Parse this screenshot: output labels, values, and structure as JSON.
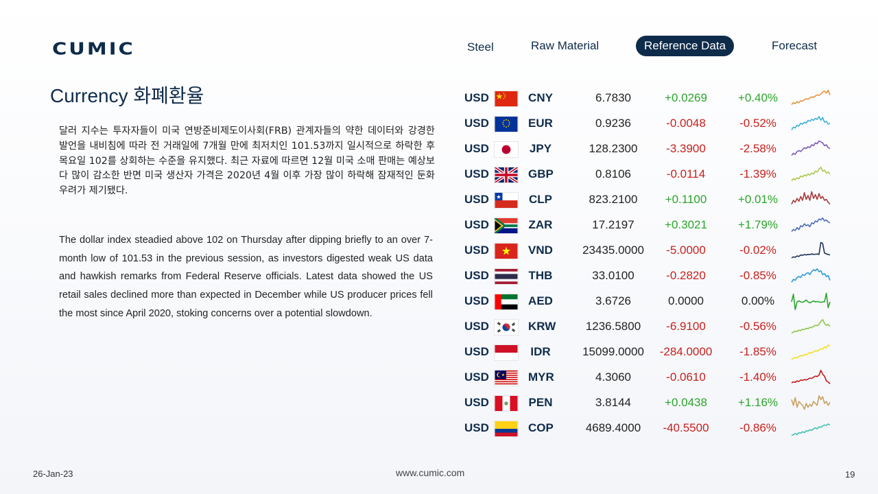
{
  "brand": {
    "name": "CUMIC"
  },
  "nav": [
    {
      "label": "Steel",
      "active": false
    },
    {
      "label": "Raw Material",
      "active": false
    },
    {
      "label": "Reference Data",
      "active": true
    },
    {
      "label": "Forecast",
      "active": false
    }
  ],
  "title": "Currency 화폐환율",
  "text_kr": "달러 지수는 투자자들이 미국 연방준비제도이사회(FRB) 관계자들의 약한 데이터와 강경한 발언을 내비침에 따라 전 거래일에 7개월 만에 최저치인 101.53까지 일시적으로 하락한 후 목요일 102를 상회하는 수준을 유지했다. 최근 자료에 따르면 12월 미국 소매 판매는 예상보다 많이 감소한 반면 미국 생산자 가격은 2020년 4월 이후 가장 많이 하락해 잠재적인 둔화 우려가 제기됐다.",
  "text_en": "The dollar index steadied above 102 on Thursday after dipping briefly to an over 7-month low of 101.53 in the previous session, as investors digested weak US data and hawkish remarks from Federal Reserve officials. Latest data showed the US retail sales declined more than expected in December while US producer prices fell the most since April 2020, stoking concerns over a potential slowdown.",
  "rates": [
    {
      "base": "USD",
      "flag": "cn-flag",
      "code": "CNY",
      "value": "6.7830",
      "change": "+0.0269",
      "pct": "+0.40%",
      "dir": "pos",
      "spark_color": "#e8923a",
      "spark": [
        0.2,
        0.3,
        0.25,
        0.35,
        0.3,
        0.4,
        0.38,
        0.45,
        0.5,
        0.48,
        0.55,
        0.6,
        0.58,
        0.65,
        0.7,
        0.68,
        0.75,
        0.85,
        0.9,
        0.8,
        0.95,
        0.7
      ]
    },
    {
      "base": "USD",
      "flag": "eu-flag",
      "code": "EUR",
      "value": "0.9236",
      "change": "-0.0048",
      "pct": "-0.52%",
      "dir": "neg",
      "spark_color": "#3ab0d8",
      "spark": [
        0.2,
        0.35,
        0.3,
        0.45,
        0.4,
        0.55,
        0.5,
        0.6,
        0.55,
        0.7,
        0.65,
        0.75,
        0.7,
        0.8,
        0.75,
        0.9,
        0.7,
        0.85,
        0.6,
        0.65,
        0.5,
        0.55
      ]
    },
    {
      "base": "USD",
      "flag": "jp-flag",
      "code": "JPY",
      "value": "128.2300",
      "change": "-3.3900",
      "pct": "-2.58%",
      "dir": "neg",
      "spark_color": "#7a58b8",
      "spark": [
        0.2,
        0.3,
        0.25,
        0.4,
        0.45,
        0.4,
        0.5,
        0.6,
        0.55,
        0.65,
        0.6,
        0.75,
        0.7,
        0.85,
        0.8,
        0.95,
        0.9,
        0.85,
        0.7,
        0.75,
        0.6,
        0.55
      ]
    },
    {
      "base": "USD",
      "flag": "gb-flag",
      "code": "GBP",
      "value": "0.8106",
      "change": "-0.0114",
      "pct": "-1.39%",
      "dir": "neg",
      "spark_color": "#a8c84a",
      "spark": [
        0.2,
        0.3,
        0.25,
        0.35,
        0.3,
        0.45,
        0.4,
        0.5,
        0.45,
        0.55,
        0.5,
        0.6,
        0.55,
        0.7,
        0.65,
        0.8,
        0.9,
        0.7,
        0.75,
        0.6,
        0.65,
        0.55
      ]
    },
    {
      "base": "USD",
      "flag": "cl-flag",
      "code": "CLP",
      "value": "823.2100",
      "change": "+0.1100",
      "pct": "+0.01%",
      "dir": "pos",
      "spark_color": "#a83a3a",
      "spark": [
        0.3,
        0.5,
        0.4,
        0.6,
        0.45,
        0.7,
        0.5,
        0.9,
        0.55,
        0.75,
        0.5,
        0.95,
        0.6,
        0.8,
        0.55,
        0.85,
        0.6,
        0.7,
        0.5,
        0.55,
        0.4,
        0.3
      ]
    },
    {
      "base": "USD",
      "flag": "za-flag",
      "code": "ZAR",
      "value": "17.2197",
      "change": "+0.3021",
      "pct": "+1.79%",
      "dir": "pos",
      "spark_color": "#4a6ab8",
      "spark": [
        0.2,
        0.3,
        0.25,
        0.4,
        0.3,
        0.5,
        0.45,
        0.6,
        0.5,
        0.55,
        0.45,
        0.65,
        0.6,
        0.75,
        0.7,
        0.85,
        0.8,
        0.9,
        0.75,
        0.8,
        0.7,
        0.65
      ]
    },
    {
      "base": "USD",
      "flag": "vn-flag",
      "code": "VND",
      "value": "23435.0000",
      "change": "-5.0000",
      "pct": "-0.02%",
      "dir": "neg",
      "spark_color": "#1f2f58",
      "spark": [
        0.15,
        0.2,
        0.18,
        0.25,
        0.22,
        0.3,
        0.28,
        0.32,
        0.3,
        0.33,
        0.32,
        0.35,
        0.33,
        0.34,
        0.35,
        0.33,
        0.95,
        0.9,
        0.4,
        0.35,
        0.33,
        0.3
      ]
    },
    {
      "base": "USD",
      "flag": "th-flag",
      "code": "THB",
      "value": "33.0100",
      "change": "-0.2820",
      "pct": "-0.85%",
      "dir": "neg",
      "spark_color": "#2a98d8",
      "spark": [
        0.2,
        0.35,
        0.3,
        0.45,
        0.5,
        0.45,
        0.6,
        0.55,
        0.65,
        0.7,
        0.6,
        0.75,
        0.85,
        0.8,
        0.9,
        0.75,
        0.8,
        0.6,
        0.65,
        0.5,
        0.55,
        0.3
      ]
    },
    {
      "base": "USD",
      "flag": "ae-flag",
      "code": "AED",
      "value": "3.6726",
      "change": "0.0000",
      "pct": "0.00%",
      "dir": "neu",
      "spark_color": "#2aa52a",
      "spark": [
        0.5,
        0.9,
        0.1,
        0.5,
        0.55,
        0.5,
        0.48,
        0.52,
        0.6,
        0.5,
        0.45,
        0.5,
        0.55,
        0.5,
        0.52,
        0.5,
        0.48,
        0.5,
        0.5,
        0.95,
        0.2,
        0.5
      ]
    },
    {
      "base": "USD",
      "flag": "kr-flag",
      "code": "KRW",
      "value": "1236.5800",
      "change": "-6.9100",
      "pct": "-0.56%",
      "dir": "neg",
      "spark_color": "#8ac84a",
      "spark": [
        0.2,
        0.25,
        0.3,
        0.28,
        0.35,
        0.33,
        0.4,
        0.38,
        0.45,
        0.42,
        0.5,
        0.48,
        0.55,
        0.6,
        0.58,
        0.65,
        0.8,
        0.9,
        0.7,
        0.6,
        0.65,
        0.55
      ]
    },
    {
      "base": "USD",
      "flag": "id-flag",
      "code": "IDR",
      "value": "15099.0000",
      "change": "-284.0000",
      "pct": "-1.85%",
      "dir": "neg",
      "spark_color": "#f0e020",
      "spark": [
        0.15,
        0.2,
        0.25,
        0.22,
        0.3,
        0.35,
        0.33,
        0.4,
        0.38,
        0.45,
        0.5,
        0.48,
        0.55,
        0.6,
        0.58,
        0.65,
        0.7,
        0.68,
        0.8,
        0.75,
        0.9,
        0.85
      ]
    },
    {
      "base": "USD",
      "flag": "my-flag",
      "code": "MYR",
      "value": "4.3060",
      "change": "-0.0610",
      "pct": "-1.40%",
      "dir": "neg",
      "spark_color": "#c81818",
      "spark": [
        0.25,
        0.3,
        0.28,
        0.35,
        0.32,
        0.4,
        0.38,
        0.42,
        0.4,
        0.45,
        0.5,
        0.48,
        0.55,
        0.6,
        0.58,
        0.65,
        0.9,
        0.7,
        0.6,
        0.35,
        0.3,
        0.2
      ]
    },
    {
      "base": "USD",
      "flag": "pe-flag",
      "code": "PEN",
      "value": "3.8144",
      "change": "+0.0438",
      "pct": "+1.16%",
      "dir": "pos",
      "spark_color": "#c8a060",
      "spark": [
        0.7,
        0.4,
        0.8,
        0.3,
        0.6,
        0.5,
        0.4,
        0.2,
        0.5,
        0.3,
        0.45,
        0.35,
        0.6,
        0.5,
        0.4,
        0.9,
        0.7,
        0.85,
        0.5,
        0.6,
        0.4,
        0.55
      ]
    },
    {
      "base": "USD",
      "flag": "co-flag",
      "code": "COP",
      "value": "4689.4000",
      "change": "-40.5500",
      "pct": "-0.86%",
      "dir": "neg",
      "spark_color": "#40c0b0",
      "spark": [
        0.15,
        0.2,
        0.25,
        0.2,
        0.3,
        0.28,
        0.35,
        0.3,
        0.4,
        0.38,
        0.45,
        0.42,
        0.5,
        0.55,
        0.5,
        0.6,
        0.58,
        0.65,
        0.7,
        0.68,
        0.75,
        0.7
      ]
    }
  ],
  "footer": {
    "date": "26-Jan-23",
    "url": "www.cumic.com",
    "page": "19"
  }
}
